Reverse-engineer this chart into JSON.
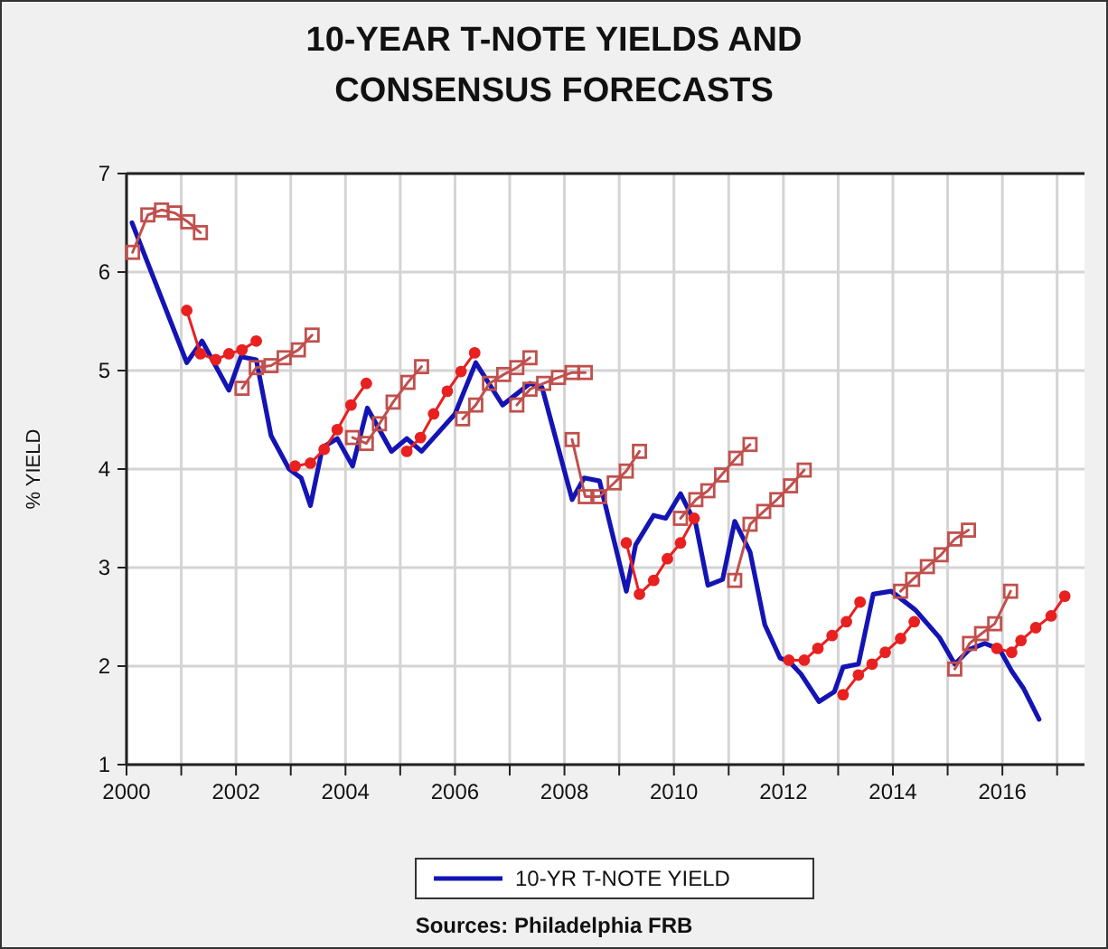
{
  "chart_data": {
    "type": "line",
    "title": "10-YEAR T-NOTE YIELDS AND CONSENSUS FORECASTS",
    "ylabel": "% YIELD",
    "xlim": [
      2000,
      2017.5
    ],
    "ylim": [
      1,
      7
    ],
    "xticks": [
      2000,
      {
        "value": 2001,
        "label": null
      },
      2002,
      {
        "value": 2003,
        "label": null
      },
      2004,
      {
        "value": 2005,
        "label": null
      },
      2006,
      {
        "value": 2007,
        "label": null
      },
      2008,
      {
        "value": 2009,
        "label": null
      },
      2010,
      {
        "value": 2011,
        "label": null
      },
      2012,
      {
        "value": 2013,
        "label": null
      },
      2014,
      {
        "value": 2015,
        "label": null
      },
      2016,
      {
        "value": 2017,
        "label": null
      }
    ],
    "yticks": [
      1,
      2,
      3,
      4,
      5,
      6,
      7
    ],
    "grid": true,
    "legend": "bottom",
    "annotations": [
      "Sources: Philadelphia FRB"
    ],
    "series": [
      {
        "name": "10-YR T-NOTE YIELD",
        "color": "#1414b4",
        "marker": "none",
        "x": [
          2000.1,
          2001.1,
          2001.38,
          2001.87,
          2002.09,
          2002.37,
          2002.64,
          2002.97,
          2003.19,
          2003.36,
          2003.58,
          2003.85,
          2004.13,
          2004.4,
          2004.84,
          2005.12,
          2005.39,
          2006.0,
          2006.38,
          2006.87,
          2007.37,
          2007.59,
          2008.14,
          2008.36,
          2008.64,
          2009.13,
          2009.3,
          2009.63,
          2009.85,
          2010.12,
          2010.4,
          2010.62,
          2010.89,
          2011.11,
          2011.39,
          2011.66,
          2011.94,
          2012.1,
          2012.32,
          2012.65,
          2012.93,
          2013.09,
          2013.37,
          2013.64,
          2013.97,
          2014.41,
          2014.85,
          2015.13,
          2015.4,
          2015.68,
          2015.95,
          2016.17,
          2016.39,
          2016.67
        ],
        "values": [
          6.5,
          5.08,
          5.3,
          4.8,
          5.14,
          5.11,
          4.34,
          4.0,
          3.91,
          3.63,
          4.22,
          4.31,
          4.03,
          4.62,
          4.18,
          4.31,
          4.18,
          4.56,
          5.08,
          4.65,
          4.87,
          4.83,
          3.69,
          3.91,
          3.88,
          2.76,
          3.23,
          3.53,
          3.5,
          3.75,
          3.44,
          2.82,
          2.88,
          3.47,
          3.16,
          2.42,
          2.08,
          2.05,
          1.92,
          1.64,
          1.74,
          1.99,
          2.02,
          2.73,
          2.76,
          2.57,
          2.29,
          2.02,
          2.17,
          2.23,
          2.17,
          1.95,
          1.77,
          1.46
        ]
      },
      {
        "color": "#c0504d",
        "marker": "square",
        "x": [
          2000.11,
          2000.39,
          2000.64,
          2000.88,
          2001.12,
          2001.35
        ],
        "values": [
          6.2,
          6.58,
          6.63,
          6.6,
          6.51,
          6.4
        ]
      },
      {
        "color": "#e82020",
        "marker": "circle",
        "x": [
          2001.1,
          2001.35,
          2001.63,
          2001.87,
          2002.11,
          2002.37
        ],
        "values": [
          5.61,
          5.17,
          5.11,
          5.17,
          5.21,
          5.3
        ]
      },
      {
        "color": "#c0504d",
        "marker": "square",
        "x": [
          2002.11,
          2002.37,
          2002.64,
          2002.88,
          2003.14,
          2003.39
        ],
        "values": [
          4.82,
          5.03,
          5.05,
          5.13,
          5.21,
          5.36
        ]
      },
      {
        "color": "#e82020",
        "marker": "circle",
        "x": [
          2003.08,
          2003.36,
          2003.61,
          2003.85,
          2004.1,
          2004.38
        ],
        "values": [
          4.03,
          4.06,
          4.2,
          4.4,
          4.65,
          4.87
        ]
      },
      {
        "color": "#c0504d",
        "marker": "square",
        "x": [
          2004.13,
          2004.38,
          2004.62,
          2004.87,
          2005.14,
          2005.39
        ],
        "values": [
          4.32,
          4.26,
          4.46,
          4.68,
          4.88,
          5.04
        ]
      },
      {
        "color": "#e82020",
        "marker": "circle",
        "x": [
          2005.12,
          2005.37,
          2005.61,
          2005.86,
          2006.11,
          2006.36
        ],
        "values": [
          4.18,
          4.32,
          4.56,
          4.79,
          4.99,
          5.18
        ]
      },
      {
        "color": "#c0504d",
        "marker": "square",
        "x": [
          2006.14,
          2006.38,
          2006.63,
          2006.89,
          2007.13,
          2007.37
        ],
        "values": [
          4.51,
          4.65,
          4.87,
          4.96,
          5.03,
          5.13
        ]
      },
      {
        "color": "#c0504d",
        "marker": "square",
        "x": [
          2007.13,
          2007.37,
          2007.62,
          2007.89,
          2008.14,
          2008.38
        ],
        "values": [
          4.65,
          4.81,
          4.87,
          4.93,
          4.98,
          4.98
        ]
      },
      {
        "color": "#c0504d",
        "marker": "square",
        "x": [
          2008.14,
          2008.38,
          2008.64,
          2008.91,
          2009.13,
          2009.37
        ],
        "values": [
          4.3,
          3.72,
          3.72,
          3.86,
          3.98,
          4.18
        ]
      },
      {
        "color": "#e82020",
        "marker": "circle",
        "x": [
          2009.13,
          2009.37,
          2009.63,
          2009.88,
          2010.12,
          2010.37
        ],
        "values": [
          3.25,
          2.73,
          2.87,
          3.09,
          3.25,
          3.5
        ]
      },
      {
        "color": "#c0504d",
        "marker": "square",
        "x": [
          2010.12,
          2010.4,
          2010.62,
          2010.87,
          2011.13,
          2011.39
        ],
        "values": [
          3.5,
          3.69,
          3.78,
          3.94,
          4.11,
          4.25
        ]
      },
      {
        "color": "#c0504d",
        "marker": "square",
        "x": [
          2011.11,
          2011.39,
          2011.64,
          2011.88,
          2012.13,
          2012.38
        ],
        "values": [
          2.87,
          3.44,
          3.57,
          3.69,
          3.83,
          3.99
        ]
      },
      {
        "color": "#e82020",
        "marker": "circle",
        "x": [
          2012.1,
          2012.38,
          2012.63,
          2012.89,
          2013.15,
          2013.4
        ],
        "values": [
          2.06,
          2.06,
          2.18,
          2.31,
          2.45,
          2.65
        ]
      },
      {
        "color": "#e82020",
        "marker": "circle",
        "x": [
          2013.09,
          2013.37,
          2013.62,
          2013.86,
          2014.14,
          2014.39
        ],
        "values": [
          1.71,
          1.91,
          2.02,
          2.14,
          2.28,
          2.45
        ]
      },
      {
        "color": "#c0504d",
        "marker": "square",
        "x": [
          2014.14,
          2014.36,
          2014.63,
          2014.88,
          2015.13,
          2015.38
        ],
        "values": [
          2.76,
          2.88,
          3.01,
          3.13,
          3.29,
          3.38
        ]
      },
      {
        "color": "#c0504d",
        "marker": "square",
        "x": [
          2015.13,
          2015.4,
          2015.62,
          2015.86,
          2016.15
        ],
        "values": [
          1.97,
          2.23,
          2.33,
          2.43,
          2.76
        ]
      },
      {
        "color": "#e82020",
        "marker": "circle",
        "x": [
          2015.9,
          2016.17,
          2016.34,
          2016.61,
          2016.89,
          2017.14
        ],
        "values": [
          2.18,
          2.14,
          2.26,
          2.39,
          2.51,
          2.71
        ]
      }
    ]
  }
}
